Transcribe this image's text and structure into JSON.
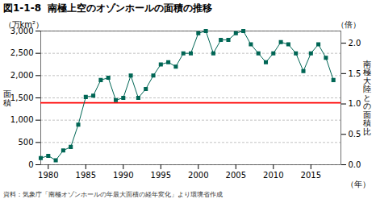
{
  "chart_data": {
    "type": "line",
    "title_number": "図1-1-8",
    "title": "南極上空のオゾンホールの面積の推移",
    "ylabel": "面\n積",
    "y2label": "南\n極\n大\n陸\nと\nの\n面\n積\n比",
    "xlabel": "（年）",
    "y_unit": "（万km²）",
    "y2_unit": "（倍）",
    "source": "資料：気象庁「南極オゾンホールの年最大面積の経年変化」より環境省作成",
    "x": [
      1979,
      1980,
      1981,
      1982,
      1983,
      1984,
      1985,
      1986,
      1987,
      1988,
      1989,
      1990,
      1991,
      1992,
      1993,
      1994,
      1995,
      1996,
      1997,
      1998,
      1999,
      2000,
      2001,
      2002,
      2003,
      2004,
      2005,
      2006,
      2007,
      2008,
      2009,
      2010,
      2011,
      2012,
      2013,
      2014,
      2015,
      2016,
      2017,
      2018
    ],
    "values": [
      150,
      200,
      100,
      320,
      400,
      900,
      1520,
      1550,
      1900,
      1950,
      1450,
      1500,
      2000,
      1500,
      1700,
      2000,
      2250,
      2300,
      2200,
      2500,
      2500,
      2950,
      3000,
      2500,
      2800,
      2800,
      2950,
      3000,
      2700,
      2500,
      2300,
      2500,
      2750,
      2700,
      2500,
      2100,
      2500,
      2700,
      2400,
      1900
    ],
    "color": "#006655",
    "marker": "square",
    "reference_line": {
      "value": 1390,
      "color": "#ff0000"
    },
    "xlim": [
      1979,
      2019
    ],
    "xticks": [
      1980,
      1985,
      1990,
      1995,
      2000,
      2005,
      2010,
      2015
    ],
    "ylim": [
      0,
      3000
    ],
    "yticks": [
      0,
      500,
      {
        "value": 1000,
        "label": "1,000"
      },
      {
        "value": 1500,
        "label": "1,500"
      },
      {
        "value": 2000,
        "label": "2,000"
      },
      {
        "value": 2500,
        "label": "2,500"
      },
      {
        "value": 3000,
        "label": "3,000"
      }
    ],
    "y2lim": [
      0,
      2.2
    ],
    "y2ticks": [
      {
        "value": 0,
        "label": "0.0"
      },
      0.5,
      {
        "value": 1,
        "label": "1.0"
      },
      1.5,
      {
        "value": 2,
        "label": "2.0"
      }
    ],
    "grid": true
  }
}
